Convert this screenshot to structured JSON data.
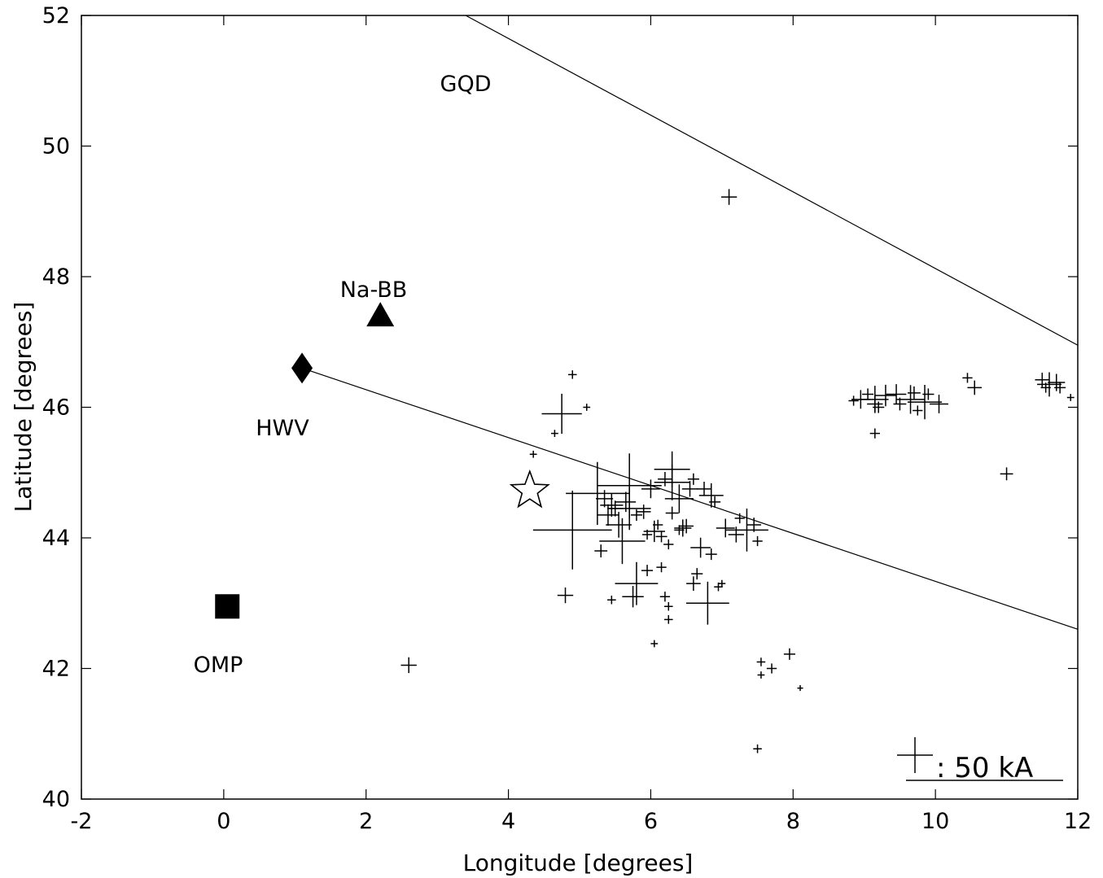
{
  "chart_data": {
    "type": "scatter",
    "title": "",
    "xlabel": "Longitude [degrees]",
    "ylabel": "Latitude [degrees]",
    "xlim": [
      -2,
      12
    ],
    "ylim": [
      40,
      52
    ],
    "xticks": [
      "-2",
      "0",
      "2",
      "4",
      "6",
      "8",
      "10",
      "12"
    ],
    "yticks": [
      "40",
      "42",
      "44",
      "46",
      "48",
      "50",
      "52"
    ],
    "grid": false,
    "stations": [
      {
        "label": "GQD",
        "marker": "none",
        "x": 3.4,
        "y": 51.0
      },
      {
        "label": "Na-BB",
        "marker": "triangle",
        "x": 2.2,
        "y": 47.4
      },
      {
        "label": "HWV",
        "marker": "diamond",
        "x": 1.1,
        "y": 46.6
      },
      {
        "label": "OMP",
        "marker": "square",
        "x": 0.05,
        "y": 42.95
      },
      {
        "label": "",
        "marker": "star",
        "x": 4.3,
        "y": 44.72
      }
    ],
    "lines": [
      {
        "points": [
          [
            3.4,
            52.0
          ],
          [
            12.0,
            46.95
          ]
        ]
      },
      {
        "points": [
          [
            1.1,
            46.6
          ],
          [
            12.0,
            42.6
          ]
        ]
      }
    ],
    "scale": {
      "label": ": 50 kA",
      "peak_current_kA": 50
    },
    "series": [
      {
        "marker": "plus",
        "points": [
          [
            7.1,
            49.22,
            22
          ],
          [
            4.9,
            46.5,
            12
          ],
          [
            5.1,
            46.0,
            10
          ],
          [
            4.35,
            45.28,
            10
          ],
          [
            4.65,
            45.6,
            10
          ],
          [
            4.75,
            45.9,
            56
          ],
          [
            4.8,
            43.12,
            22
          ],
          [
            2.6,
            42.05,
            22
          ],
          [
            5.3,
            43.8,
            18
          ],
          [
            5.45,
            43.05,
            12
          ],
          [
            5.75,
            43.1,
            30
          ],
          [
            5.95,
            43.5,
            16
          ],
          [
            6.15,
            43.55,
            14
          ],
          [
            6.2,
            43.1,
            14
          ],
          [
            6.25,
            42.75,
            12
          ],
          [
            6.25,
            42.95,
            12
          ],
          [
            6.05,
            42.38,
            10
          ],
          [
            6.6,
            43.3,
            20
          ],
          [
            6.65,
            43.45,
            16
          ],
          [
            6.85,
            43.75,
            16
          ],
          [
            6.95,
            43.25,
            12
          ],
          [
            7.0,
            43.3,
            10
          ],
          [
            6.8,
            43.0,
            60
          ],
          [
            6.7,
            43.85,
            28
          ],
          [
            7.55,
            42.1,
            12
          ],
          [
            7.55,
            41.9,
            10
          ],
          [
            7.7,
            42.0,
            14
          ],
          [
            7.95,
            42.22,
            16
          ],
          [
            8.1,
            41.7,
            8
          ],
          [
            7.5,
            40.77,
            12
          ],
          [
            9.15,
            45.6,
            14
          ],
          [
            10.45,
            46.45,
            14
          ],
          [
            10.55,
            46.3,
            20
          ],
          [
            11.0,
            44.98,
            18
          ],
          [
            11.9,
            46.15,
            10
          ],
          [
            4.9,
            44.12,
            110
          ],
          [
            5.25,
            44.68,
            88
          ],
          [
            5.7,
            44.8,
            90
          ],
          [
            5.7,
            44.45,
            60
          ],
          [
            5.6,
            43.95,
            64
          ],
          [
            5.8,
            43.3,
            60
          ],
          [
            6.3,
            44.85,
            50
          ],
          [
            6.3,
            45.05,
            50
          ],
          [
            6.4,
            44.6,
            40
          ],
          [
            6.85,
            44.65,
            34
          ],
          [
            6.05,
            44.1,
            30
          ],
          [
            6.45,
            44.15,
            24
          ],
          [
            5.45,
            44.5,
            32
          ],
          [
            5.65,
            44.55,
            28
          ],
          [
            5.9,
            44.4,
            20
          ],
          [
            7.35,
            44.12,
            60
          ],
          [
            7.05,
            44.15,
            26
          ],
          [
            5.4,
            44.35,
            30
          ],
          [
            5.55,
            44.2,
            36
          ],
          [
            5.35,
            44.6,
            24
          ],
          [
            6.3,
            44.38,
            18
          ],
          [
            6.55,
            44.75,
            22
          ],
          [
            6.75,
            44.75,
            20
          ],
          [
            6.0,
            44.75,
            26
          ],
          [
            6.2,
            44.9,
            20
          ],
          [
            6.15,
            44.02,
            16
          ],
          [
            6.25,
            43.9,
            14
          ],
          [
            6.1,
            44.2,
            14
          ],
          [
            6.5,
            44.18,
            20
          ],
          [
            6.4,
            44.12,
            14
          ],
          [
            7.2,
            44.05,
            22
          ],
          [
            7.45,
            44.2,
            20
          ],
          [
            7.25,
            44.3,
            14
          ],
          [
            7.5,
            43.95,
            14
          ],
          [
            5.5,
            44.45,
            22
          ],
          [
            5.8,
            44.35,
            16
          ],
          [
            6.9,
            44.55,
            16
          ],
          [
            6.6,
            44.9,
            16
          ],
          [
            5.95,
            44.05,
            14
          ],
          [
            9.15,
            46.12,
            38
          ],
          [
            8.95,
            46.12,
            26
          ],
          [
            9.3,
            46.18,
            30
          ],
          [
            9.15,
            46.05,
            22
          ],
          [
            9.45,
            46.2,
            28
          ],
          [
            9.65,
            46.12,
            40
          ],
          [
            9.85,
            46.08,
            48
          ],
          [
            10.05,
            46.05,
            26
          ],
          [
            9.7,
            46.22,
            18
          ],
          [
            9.05,
            46.2,
            16
          ],
          [
            9.5,
            46.05,
            18
          ],
          [
            9.9,
            46.2,
            16
          ],
          [
            9.2,
            46.0,
            16
          ],
          [
            9.75,
            45.95,
            14
          ],
          [
            8.85,
            46.1,
            14
          ],
          [
            11.6,
            46.35,
            34
          ],
          [
            11.7,
            46.38,
            24
          ],
          [
            11.5,
            46.42,
            20
          ],
          [
            11.75,
            46.3,
            16
          ],
          [
            11.55,
            46.3,
            14
          ]
        ]
      }
    ]
  }
}
